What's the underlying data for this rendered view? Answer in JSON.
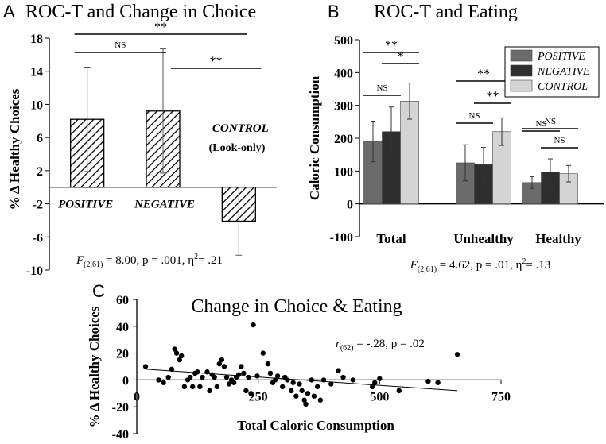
{
  "colors": {
    "ink": "#000000",
    "positive": "#6b6b6b",
    "negative": "#2e2e2e",
    "control": "#d4d4d4",
    "hatch": "#000000"
  },
  "chart_data": [
    {
      "panel_letter": "A",
      "type": "bar",
      "title": "ROC-T and Change in Choice",
      "ylabel": "% Δ Healthy Choices",
      "ylim": [
        -10,
        18
      ],
      "yticks": [
        "18",
        "14",
        "10",
        "6",
        "2",
        "-2",
        "-6",
        "-10"
      ],
      "ytick_values": [
        18,
        14,
        10,
        6,
        2,
        -2,
        -6,
        -10
      ],
      "categories": [
        "POSITIVE",
        "NEGATIVE",
        "CONTROL"
      ],
      "values": [
        8.2,
        9.2,
        -4.1
      ],
      "errors": [
        6.3,
        7.5,
        4.1
      ],
      "control_sublabel": "(Look-only)",
      "comparisons": [
        {
          "from": 0,
          "to": 1,
          "label": "NS"
        },
        {
          "from": 1,
          "to": 2,
          "label": "**"
        },
        {
          "from": 0,
          "to": 2,
          "label": "**"
        }
      ],
      "stat_prefix": "F",
      "stat_sub": "(2,61)",
      "stat_text": " = 8.00, p = .001, η",
      "stat_sup": "2",
      "stat_tail": "= .21"
    },
    {
      "panel_letter": "B",
      "type": "bar",
      "title": "ROC-T and Eating",
      "ylabel": "Caloric Consumption",
      "ylim": [
        -100,
        500
      ],
      "yticks": [
        "500",
        "400",
        "300",
        "200",
        "100",
        "0",
        "-100"
      ],
      "ytick_values": [
        500,
        400,
        300,
        200,
        100,
        0,
        -100
      ],
      "categories": [
        "Total",
        "Unhealthy",
        "Healthy"
      ],
      "series": [
        {
          "name": "POSITIVE",
          "values": [
            190,
            125,
            65
          ],
          "errors": [
            62,
            55,
            18
          ]
        },
        {
          "name": "NEGATIVE",
          "values": [
            220,
            120,
            97
          ],
          "errors": [
            75,
            52,
            40
          ]
        },
        {
          "name": "CONTROL",
          "values": [
            313,
            220,
            92
          ],
          "errors": [
            55,
            42,
            25
          ]
        }
      ],
      "comparisons": [
        {
          "group": 0,
          "from": 0,
          "to": 1,
          "label": "NS"
        },
        {
          "group": 0,
          "from": 1,
          "to": 2,
          "label": "*"
        },
        {
          "group": 0,
          "from": 0,
          "to": 2,
          "label": "**"
        },
        {
          "group": 1,
          "from": 0,
          "to": 1,
          "label": "NS"
        },
        {
          "group": 1,
          "from": 1,
          "to": 2,
          "label": "**"
        },
        {
          "group": 1,
          "from": 0,
          "to": 2,
          "label": "**"
        },
        {
          "group": 2,
          "from": 0,
          "to": 1,
          "label": "NS"
        },
        {
          "group": 2,
          "from": 1,
          "to": 2,
          "label": "NS"
        },
        {
          "group": 2,
          "from": 0,
          "to": 2,
          "label": "NS"
        }
      ],
      "stat_prefix": "F",
      "stat_sub": "(2,61)",
      "stat_text": " = 4.62, p = .01, η",
      "stat_sup": "2",
      "stat_tail": "= .13"
    },
    {
      "panel_letter": "C",
      "type": "scatter",
      "title": "Change in Choice & Eating",
      "xlabel": "Total Caloric Consumption",
      "ylabel": "% Δ Healthy Choices",
      "xlim": [
        0,
        750
      ],
      "ylim": [
        -40,
        60
      ],
      "xticks": [
        "0",
        "250",
        "500",
        "750"
      ],
      "xtick_values": [
        0,
        250,
        500,
        750
      ],
      "yticks": [
        "60",
        "40",
        "20",
        "0",
        "-20",
        "-40"
      ],
      "ytick_values": [
        60,
        40,
        20,
        0,
        -20,
        -40
      ],
      "stat_prefix": "r",
      "stat_sub": "(62)",
      "stat_text": " = -.28, p = .02",
      "trendline": {
        "x": [
          20,
          660
        ],
        "y": [
          8,
          -8
        ]
      },
      "points": [
        [
          18,
          10
        ],
        [
          45,
          0
        ],
        [
          55,
          -2
        ],
        [
          65,
          2
        ],
        [
          72,
          8
        ],
        [
          78,
          23
        ],
        [
          82,
          20
        ],
        [
          88,
          15
        ],
        [
          92,
          18
        ],
        [
          98,
          -5
        ],
        [
          105,
          0
        ],
        [
          110,
          2
        ],
        [
          115,
          -5
        ],
        [
          120,
          5
        ],
        [
          125,
          6
        ],
        [
          130,
          -5
        ],
        [
          135,
          2
        ],
        [
          145,
          6
        ],
        [
          150,
          -8
        ],
        [
          155,
          4
        ],
        [
          160,
          2
        ],
        [
          165,
          -5
        ],
        [
          170,
          12
        ],
        [
          175,
          15
        ],
        [
          180,
          10
        ],
        [
          185,
          2
        ],
        [
          190,
          -3
        ],
        [
          195,
          0
        ],
        [
          200,
          -2
        ],
        [
          205,
          2
        ],
        [
          210,
          4
        ],
        [
          215,
          10
        ],
        [
          220,
          5
        ],
        [
          225,
          -8
        ],
        [
          230,
          2
        ],
        [
          235,
          -10
        ],
        [
          240,
          41
        ],
        [
          248,
          3
        ],
        [
          260,
          20
        ],
        [
          270,
          12
        ],
        [
          275,
          5
        ],
        [
          280,
          -2
        ],
        [
          285,
          0
        ],
        [
          290,
          3
        ],
        [
          300,
          -5
        ],
        [
          305,
          2
        ],
        [
          310,
          0
        ],
        [
          318,
          -8
        ],
        [
          322,
          -2
        ],
        [
          328,
          -12
        ],
        [
          335,
          -3
        ],
        [
          340,
          -8
        ],
        [
          345,
          -15
        ],
        [
          348,
          -18
        ],
        [
          352,
          -10
        ],
        [
          360,
          0
        ],
        [
          365,
          -12
        ],
        [
          372,
          -5
        ],
        [
          378,
          -15
        ],
        [
          385,
          0
        ],
        [
          400,
          -3
        ],
        [
          415,
          7
        ],
        [
          425,
          2
        ],
        [
          445,
          0
        ],
        [
          485,
          -5
        ],
        [
          490,
          -2
        ],
        [
          500,
          1
        ],
        [
          540,
          -8
        ],
        [
          600,
          -1
        ],
        [
          620,
          -2
        ],
        [
          660,
          19
        ]
      ]
    }
  ],
  "legend_b": [
    "POSITIVE",
    "NEGATIVE",
    "CONTROL"
  ]
}
